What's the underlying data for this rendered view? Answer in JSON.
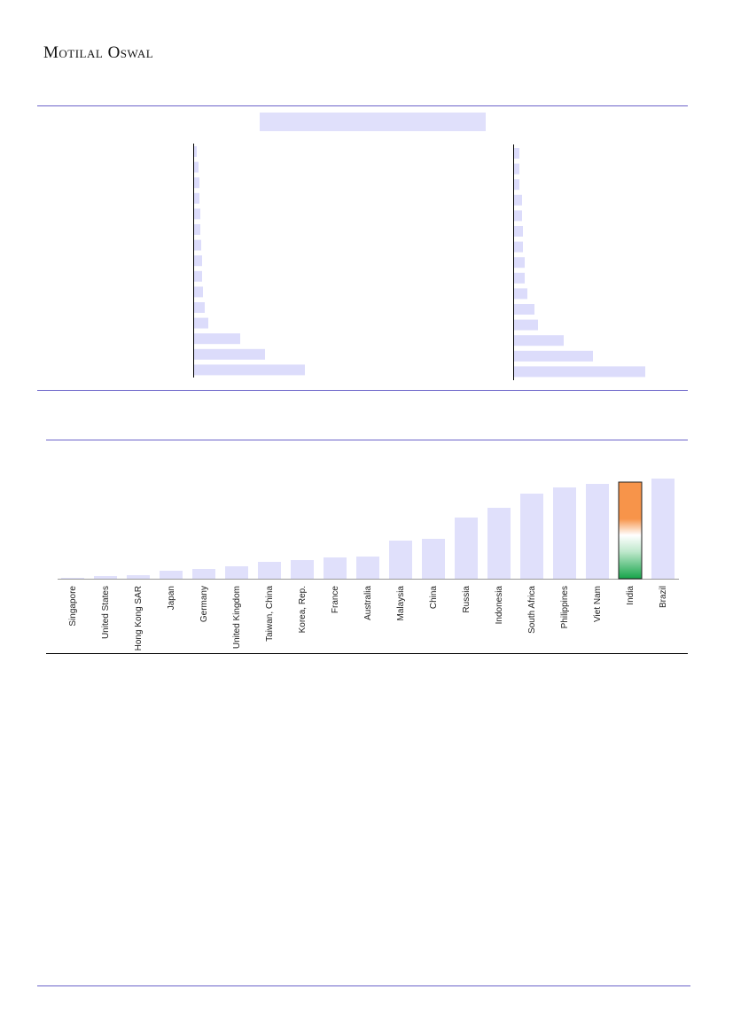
{
  "header": {
    "brand": "Motilal Oswal"
  },
  "chart_data": [
    {
      "type": "hbar",
      "color": "#dcdcfb",
      "values": [
        3,
        5,
        6,
        6,
        7,
        7,
        8,
        9,
        9,
        10,
        12,
        16,
        52,
        80,
        125
      ]
    },
    {
      "type": "hbar",
      "color": "#dcdcfb",
      "values": [
        6,
        6,
        6,
        9,
        9,
        10,
        10,
        12,
        12,
        15,
        23,
        27,
        56,
        89,
        148
      ]
    },
    {
      "type": "bar",
      "categories": [
        "Singapore",
        "United States",
        "Hong Kong SAR",
        "Japan",
        "Germany",
        "United Kingdom",
        "Taiwan, China",
        "Korea, Rep.",
        "France",
        "Australia",
        "Malaysia",
        "China",
        "Russia",
        "Indonesia",
        "South Africa",
        "Philippines",
        "Viet Nam",
        "India",
        "Brazil"
      ],
      "values": [
        1,
        3,
        4,
        9,
        11,
        14,
        19,
        21,
        24,
        25,
        43,
        45,
        69,
        80,
        96,
        103,
        107,
        109,
        113
      ],
      "colors": [
        "#e0e0fb",
        "#e0e0fb",
        "#e0e0fb",
        "#e0e0fb",
        "#e0e0fb",
        "#e0e0fb",
        "#e0e0fb",
        "#e0e0fb",
        "#e0e0fb",
        "#e0e0fb",
        "#e0e0fb",
        "#e0e0fb",
        "#e0e0fb",
        "#e0e0fb",
        "#e0e0fb",
        "#e0e0fb",
        "#e0e0fb",
        "url(#tricolor)",
        "#e0e0fb"
      ]
    }
  ]
}
